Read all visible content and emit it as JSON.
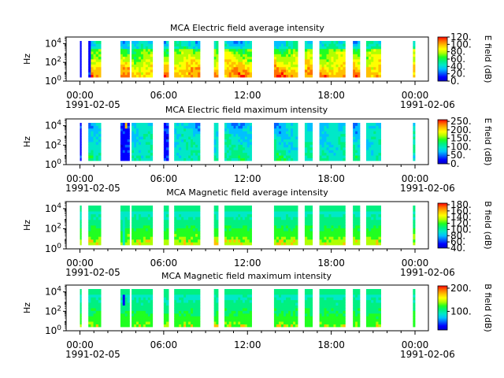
{
  "chart_data": [
    {
      "type": "heatmap",
      "title": "MCA  Electric field average intensity",
      "ylabel": "Hz",
      "colorbar_label": "E field (dB)",
      "colorbar_ticks": [
        "0.",
        "20.",
        "40.",
        "60.",
        "80.",
        "100.",
        "120."
      ],
      "colorbar_range": [
        0,
        120
      ],
      "y_scale": "log",
      "y_ticks": [
        "10^0",
        "10^2",
        "10^4"
      ]
    },
    {
      "type": "heatmap",
      "title": "MCA  Electric field maximum intensity",
      "ylabel": "Hz",
      "colorbar_label": "E field (dB)",
      "colorbar_ticks": [
        "0.",
        "50.",
        "100.",
        "150.",
        "200.",
        "250."
      ],
      "colorbar_range": [
        0,
        260
      ],
      "y_scale": "log",
      "y_ticks": [
        "10^0",
        "10^2",
        "10^4"
      ]
    },
    {
      "type": "heatmap",
      "title": "MCA  Magnetic field average intensity",
      "ylabel": "Hz",
      "colorbar_label": "B field (dB)",
      "colorbar_ticks": [
        "40.",
        "60.",
        "80.",
        "100.",
        "120.",
        "140.",
        "160.",
        "180."
      ],
      "colorbar_range": [
        40,
        185
      ],
      "y_scale": "log",
      "y_ticks": [
        "10^0",
        "10^2",
        "10^4"
      ]
    },
    {
      "type": "heatmap",
      "title": "MCA  Magnetic field maximum intensity",
      "ylabel": "Hz",
      "colorbar_label": "B field (dB)",
      "colorbar_ticks": [
        "100.",
        "200."
      ],
      "colorbar_range": [
        20,
        210
      ],
      "y_scale": "log",
      "y_ticks": [
        "10^0",
        "10^2",
        "10^4"
      ]
    }
  ],
  "x_axis": {
    "tick_labels": [
      "00:00",
      "06:00",
      "12:00",
      "18:00",
      "00:00"
    ],
    "start_date": "1991-02-05",
    "end_date": "1991-02-06"
  },
  "data_segments_hours": [
    [
      0.0,
      0.1
    ],
    [
      0.6,
      1.5
    ],
    [
      2.9,
      3.55
    ],
    [
      3.7,
      5.2
    ],
    [
      6.0,
      6.35
    ],
    [
      6.75,
      8.6
    ],
    [
      9.6,
      9.9
    ],
    [
      10.35,
      12.3
    ],
    [
      13.9,
      15.6
    ],
    [
      16.1,
      16.65
    ],
    [
      17.15,
      19.0
    ],
    [
      19.55,
      20.05
    ],
    [
      20.5,
      21.55
    ],
    [
      23.85,
      24.0
    ]
  ],
  "colors": {
    "colormap": [
      "#0000c8",
      "#0000ff",
      "#0060ff",
      "#00c0ff",
      "#00e8c8",
      "#00f080",
      "#20ff20",
      "#b0ff00",
      "#ffff00",
      "#ffc000",
      "#ff7000",
      "#ff0000"
    ]
  }
}
